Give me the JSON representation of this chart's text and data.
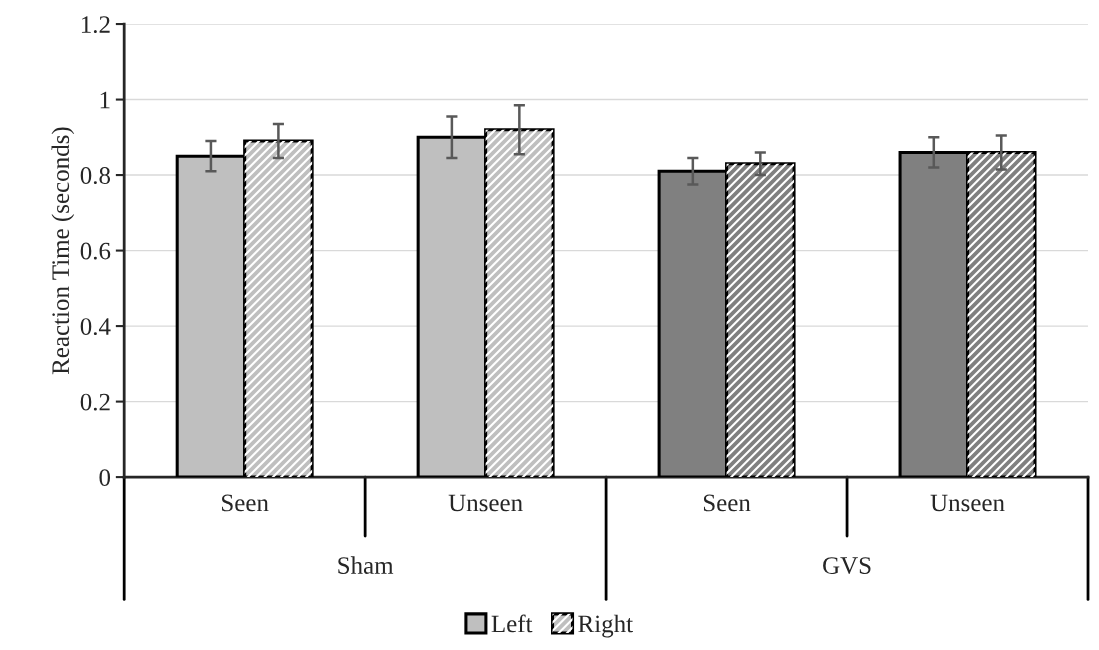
{
  "chart_data": {
    "type": "bar",
    "ylabel": "Reaction Time (seconds)",
    "categories": [
      "Seen",
      "Unseen",
      "Seen",
      "Unseen"
    ],
    "annotations": [
      "Sham",
      "GVS"
    ],
    "series": [
      {
        "name": "Left",
        "colors": [
          "#bfbfbf",
          "#bfbfbf",
          "#808080",
          "#808080"
        ],
        "values": [
          0.85,
          0.9,
          0.81,
          0.86
        ],
        "errors": [
          0.04,
          0.055,
          0.035,
          0.04
        ]
      },
      {
        "name": "Right",
        "colors": [
          "#bfbfbf",
          "#bfbfbf",
          "#808080",
          "#808080"
        ],
        "values": [
          0.89,
          0.92,
          0.83,
          0.86
        ],
        "errors": [
          0.045,
          0.065,
          0.03,
          0.045
        ]
      }
    ],
    "ylim": [
      0,
      1.2
    ],
    "yticks": [
      0,
      0.2,
      0.4,
      0.6,
      0.8,
      1,
      1.2
    ],
    "grid": "y",
    "legend": "bottom"
  }
}
